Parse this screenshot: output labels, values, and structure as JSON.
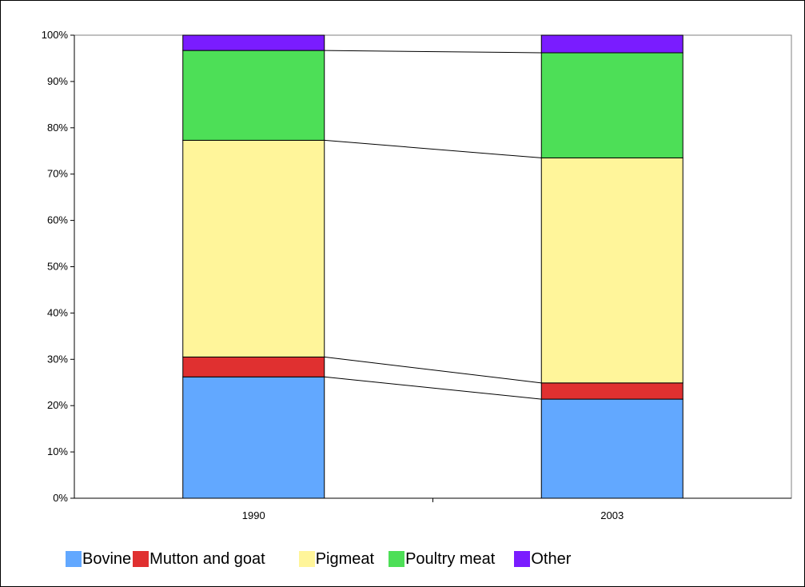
{
  "chart_data": {
    "type": "bar",
    "stacked": true,
    "percent": true,
    "categories": [
      "1990",
      "2003"
    ],
    "series": [
      {
        "name": "Bovine",
        "color": "#62a8ff",
        "values": [
          26.2,
          21.4
        ]
      },
      {
        "name": "Mutton and goat",
        "color": "#e03030",
        "values": [
          4.3,
          3.5
        ]
      },
      {
        "name": "Pigmeat",
        "color": "#fff59a",
        "values": [
          46.8,
          48.6
        ]
      },
      {
        "name": "Poultry meat",
        "color": "#4ddf57",
        "values": [
          19.4,
          22.7
        ]
      },
      {
        "name": "Other",
        "color": "#7a1cff",
        "values": [
          3.3,
          3.8
        ]
      }
    ],
    "ylim": [
      0,
      100
    ],
    "yticks": [
      "0%",
      "10%",
      "20%",
      "30%",
      "40%",
      "50%",
      "60%",
      "70%",
      "80%",
      "90%",
      "100%"
    ],
    "series_lines": true,
    "grid": false,
    "legend_position": "bottom",
    "title": "",
    "xlabel": "",
    "ylabel": ""
  }
}
